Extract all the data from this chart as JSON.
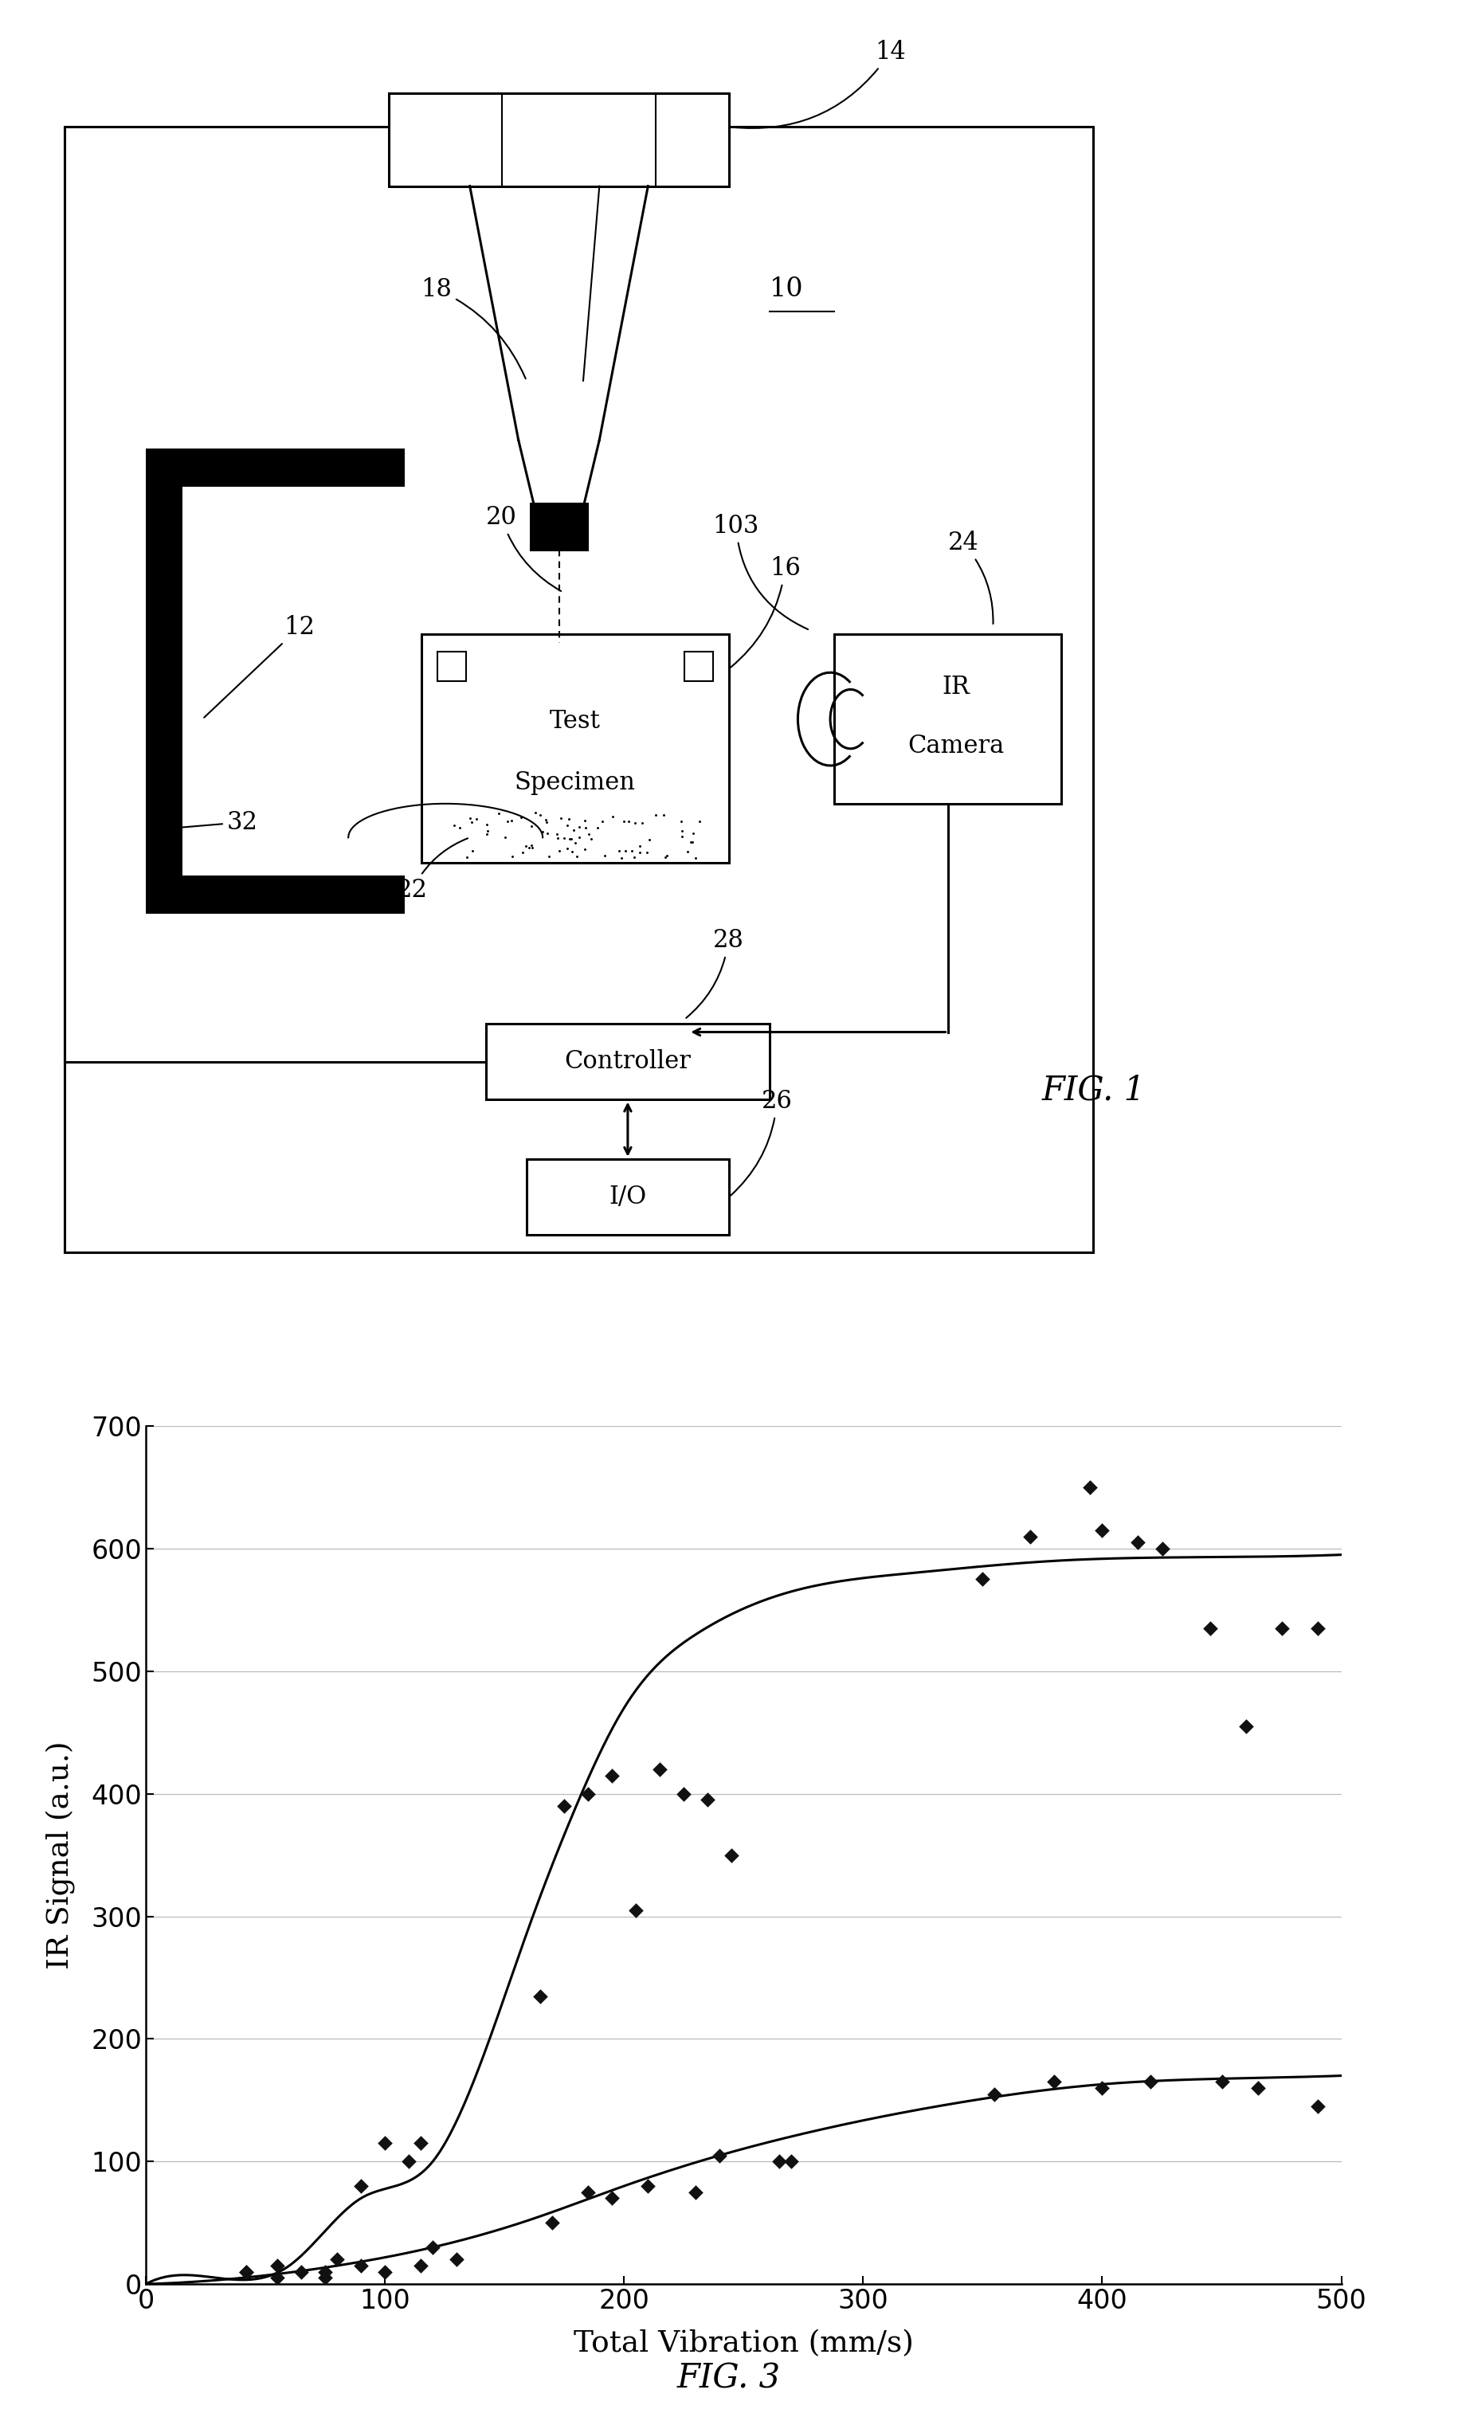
{
  "fig_width": 18.3,
  "fig_height": 30.34,
  "background_color": "#ffffff",
  "scatter_upper": {
    "x": [
      42,
      55,
      65,
      75,
      80,
      90,
      100,
      110,
      115,
      120,
      130,
      165,
      175,
      185,
      195,
      205,
      215,
      225,
      235,
      245,
      270,
      350,
      370,
      395,
      400,
      415,
      425,
      445,
      460,
      475,
      490
    ],
    "y": [
      10,
      15,
      10,
      5,
      20,
      80,
      115,
      100,
      115,
      30,
      20,
      235,
      390,
      400,
      415,
      305,
      420,
      400,
      395,
      350,
      100,
      575,
      610,
      650,
      615,
      605,
      600,
      535,
      455,
      535,
      535
    ]
  },
  "scatter_lower": {
    "x": [
      42,
      55,
      75,
      90,
      100,
      115,
      170,
      185,
      195,
      210,
      230,
      240,
      265,
      355,
      380,
      400,
      420,
      450,
      465,
      490
    ],
    "y": [
      10,
      5,
      10,
      15,
      10,
      15,
      50,
      75,
      70,
      80,
      75,
      105,
      100,
      155,
      165,
      160,
      165,
      165,
      160,
      145
    ]
  },
  "curve_upper_x": [
    0,
    30,
    60,
    90,
    120,
    140,
    160,
    180,
    200,
    230,
    270,
    320,
    380,
    440,
    500
  ],
  "curve_upper_y": [
    0,
    5,
    15,
    70,
    100,
    180,
    290,
    390,
    470,
    530,
    565,
    580,
    590,
    593,
    595
  ],
  "curve_lower_x": [
    0,
    40,
    80,
    120,
    160,
    200,
    240,
    280,
    340,
    400,
    460,
    500
  ],
  "curve_lower_y": [
    0,
    5,
    15,
    30,
    52,
    80,
    105,
    125,
    148,
    163,
    168,
    170
  ],
  "xlabel": "Total Vibration (mm/s)",
  "ylabel": "IR Signal (a.u.)",
  "xlim": [
    0,
    500
  ],
  "ylim": [
    0,
    700
  ],
  "yticks": [
    0,
    100,
    200,
    300,
    400,
    500,
    600,
    700
  ],
  "xticks": [
    0,
    100,
    200,
    300,
    400,
    500
  ],
  "grid_color": "#bbbbbb",
  "line_color": "#000000",
  "scatter_color": "#111111",
  "marker_size": 90
}
